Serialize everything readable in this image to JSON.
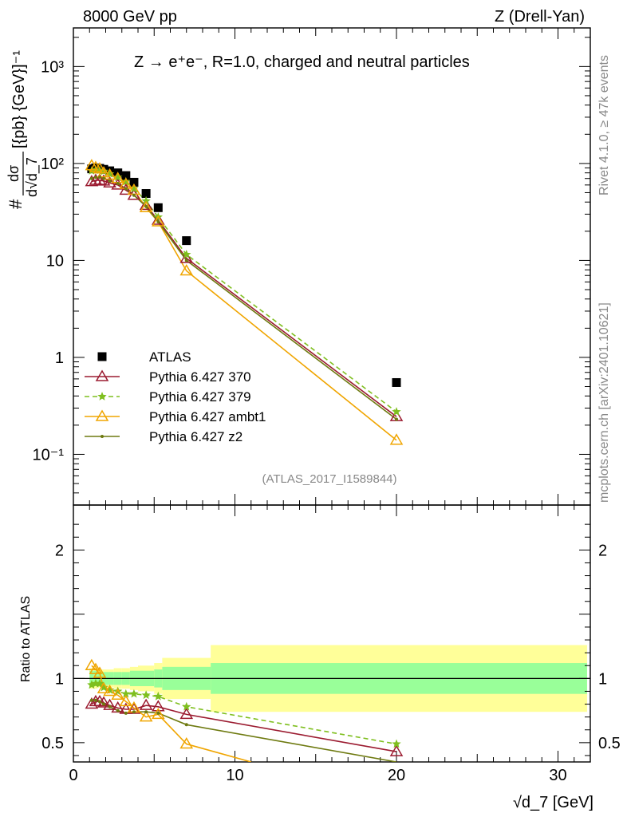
{
  "header": {
    "left": "8000 GeV pp",
    "right": "Z (Drell-Yan)",
    "title": "Z → e⁺e⁻, R=1.0, charged and neutral particles"
  },
  "side_labels": {
    "rivet": "Rivet 4.1.0, ≥ 47k events",
    "mcplots": "mcplots.cern.ch [arXiv:2401.10621]"
  },
  "watermark": "(ATLAS_2017_I1589844)",
  "colors": {
    "atlas": "#000000",
    "p370": "#9b1b30",
    "p379": "#7fbf1f",
    "ambt1": "#f0a500",
    "z2": "#6e7a10",
    "band_inner": "#99ff99",
    "band_outer": "#ffff99"
  },
  "chart_data": [
    {
      "type": "scatter",
      "panel": "main",
      "ylabel": "# dσ / d√d_7 [{pb} {GeV}]⁻¹",
      "yscale": "log",
      "ylim": [
        0.03,
        2500
      ],
      "xlim": [
        0,
        32
      ],
      "ytick_labels": [
        "10⁻¹",
        "1",
        "10",
        "10²",
        "10³"
      ],
      "legend_position": "lower-left",
      "series": [
        {
          "name": "ATLAS",
          "marker": "square",
          "x": [
            1.13,
            1.38,
            1.63,
            1.88,
            2.25,
            2.75,
            3.25,
            3.75,
            4.5,
            5.25,
            7.0,
            20.0
          ],
          "y": [
            88,
            90,
            89,
            87,
            84,
            80,
            75,
            64,
            49,
            35,
            16,
            0.55
          ]
        },
        {
          "name": "Pythia 6.427 370",
          "marker": "open-triangle",
          "line": "solid",
          "x": [
            1.13,
            1.38,
            1.63,
            1.88,
            2.25,
            2.75,
            3.25,
            3.75,
            4.5,
            5.25,
            7.0,
            20.0
          ],
          "y": [
            65,
            67,
            67,
            66,
            63,
            60,
            53,
            47,
            37,
            26,
            10.5,
            0.245
          ]
        },
        {
          "name": "Pythia 6.427 379",
          "marker": "star",
          "line": "dashed",
          "x": [
            1.13,
            1.38,
            1.63,
            1.88,
            2.25,
            2.75,
            3.25,
            3.75,
            4.5,
            5.25,
            7.0,
            20.0
          ],
          "y": [
            84,
            86,
            85,
            83,
            78,
            72,
            65,
            55,
            41,
            28,
            11.5,
            0.275
          ]
        },
        {
          "name": "Pythia 6.427 ambt1",
          "marker": "open-triangle",
          "line": "solid",
          "x": [
            1.13,
            1.38,
            1.63,
            1.88,
            2.25,
            2.75,
            3.25,
            3.75,
            4.5,
            5.25,
            7.0,
            20.0
          ],
          "y": [
            95,
            91,
            88,
            80,
            76,
            70,
            61,
            53,
            35,
            25,
            7.8,
            0.14
          ]
        },
        {
          "name": "Pythia 6.427 z2",
          "marker": "dot",
          "line": "solid",
          "x": [
            1.13,
            1.38,
            1.63,
            1.88,
            2.25,
            2.75,
            3.25,
            3.75,
            4.5,
            5.25,
            7.0,
            20.0
          ],
          "y": [
            70,
            72,
            72,
            70,
            66,
            62,
            55,
            47,
            36,
            25,
            10.0,
            0.23
          ]
        }
      ]
    },
    {
      "type": "line",
      "panel": "ratio",
      "ylabel": "Ratio to ATLAS",
      "xlabel": "√d_7 [GeV]",
      "xlim": [
        0,
        32
      ],
      "ylim": [
        0.35,
        2.35
      ],
      "xtick_labels": [
        "0",
        "10",
        "20",
        "30"
      ],
      "ytick_labels": [
        "0.5",
        "1",
        "2"
      ],
      "bands": {
        "edges": [
          1.0,
          1.25,
          1.5,
          1.75,
          2.0,
          2.5,
          3.0,
          3.5,
          4.0,
          5.0,
          5.5,
          8.5,
          31.8
        ],
        "inner": [
          0.06,
          0.06,
          0.05,
          0.05,
          0.05,
          0.05,
          0.05,
          0.06,
          0.06,
          0.07,
          0.09,
          0.12
        ],
        "outer": [
          0.08,
          0.08,
          0.07,
          0.07,
          0.07,
          0.08,
          0.08,
          0.09,
          0.1,
          0.12,
          0.16,
          0.26
        ]
      },
      "series": [
        {
          "name": "Pythia 6.427 370",
          "x": [
            1.13,
            1.38,
            1.63,
            1.88,
            2.25,
            2.75,
            3.25,
            3.75,
            4.5,
            5.25,
            7.0,
            20.0
          ],
          "y": [
            0.8,
            0.82,
            0.82,
            0.81,
            0.79,
            0.77,
            0.76,
            0.76,
            0.79,
            0.78,
            0.72,
            0.43
          ]
        },
        {
          "name": "Pythia 6.427 379",
          "x": [
            1.13,
            1.38,
            1.63,
            1.88,
            2.25,
            2.75,
            3.25,
            3.75,
            4.5,
            5.25,
            7.0,
            20.0
          ],
          "y": [
            0.95,
            0.96,
            0.96,
            0.93,
            0.91,
            0.9,
            0.88,
            0.88,
            0.87,
            0.86,
            0.78,
            0.49
          ]
        },
        {
          "name": "Pythia 6.427 ambt1",
          "x": [
            1.13,
            1.38,
            1.63,
            1.88,
            2.25,
            2.75,
            3.25,
            3.75,
            4.5,
            5.25,
            7.0,
            11.0
          ],
          "y": [
            1.1,
            1.07,
            1.04,
            0.92,
            0.9,
            0.87,
            0.82,
            0.77,
            0.7,
            0.72,
            0.49,
            0.35
          ]
        },
        {
          "name": "Pythia 6.427 z2",
          "x": [
            1.13,
            1.38,
            1.63,
            1.88,
            2.25,
            2.75,
            3.25,
            3.75,
            4.5,
            5.25,
            7.0,
            20.0
          ],
          "y": [
            0.83,
            0.83,
            0.82,
            0.8,
            0.78,
            0.75,
            0.73,
            0.74,
            0.74,
            0.73,
            0.64,
            0.35
          ]
        }
      ]
    }
  ]
}
